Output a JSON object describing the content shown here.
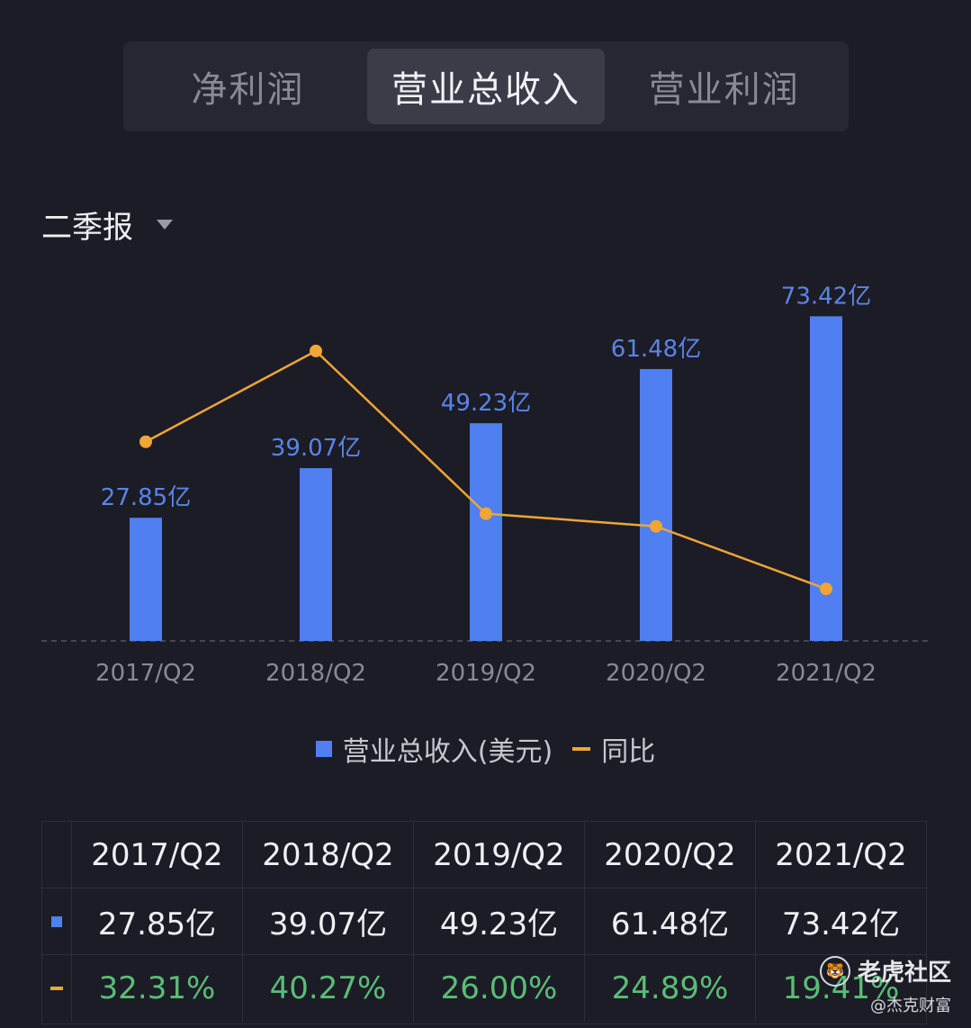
{
  "tabs": [
    {
      "label": "净利润",
      "active": false
    },
    {
      "label": "营业总收入",
      "active": true
    },
    {
      "label": "营业利润",
      "active": false
    }
  ],
  "period": {
    "label": "二季报",
    "icon": "caret-down-icon"
  },
  "colors": {
    "bar": "#4f7ff0",
    "line": "#f0a535",
    "positive": "#5bbd78"
  },
  "chart_data": {
    "type": "bar",
    "categories": [
      "2017/Q2",
      "2018/Q2",
      "2019/Q2",
      "2020/Q2",
      "2021/Q2"
    ],
    "series": [
      {
        "name": "营业总收入(美元)",
        "type": "bar",
        "values": [
          27.85,
          39.07,
          49.23,
          61.48,
          73.42
        ],
        "labels": [
          "27.85亿",
          "39.07亿",
          "49.23亿",
          "61.48亿",
          "73.42亿"
        ]
      },
      {
        "name": "同比",
        "type": "line",
        "values": [
          32.31,
          40.27,
          26.0,
          24.89,
          19.41
        ]
      }
    ],
    "grid": false,
    "legend": "bottom"
  },
  "legend": {
    "bar_label": "营业总收入(美元)",
    "line_label": "同比"
  },
  "table": {
    "headers": [
      "2017/Q2",
      "2018/Q2",
      "2019/Q2",
      "2020/Q2",
      "2021/Q2"
    ],
    "revenue": [
      "27.85亿",
      "39.07亿",
      "49.23亿",
      "61.48亿",
      "73.42亿"
    ],
    "yoy": [
      "32.31%",
      "40.27%",
      "26.00%",
      "24.89%",
      "19.41%"
    ]
  },
  "watermark": {
    "brand": "老虎社区",
    "author": "@杰克财富",
    "icon": "tiger-logo-icon"
  }
}
